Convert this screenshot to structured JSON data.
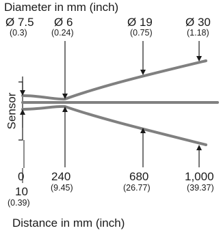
{
  "diagram": {
    "title": "Diameter in mm (inch)",
    "axis_label": "Distance in mm (inch)",
    "sensor_label": "Sensor",
    "beam_color": "#808080",
    "diameters": [
      {
        "mm": "Ø 7.5",
        "inch": "(0.3)"
      },
      {
        "mm": "Ø 6",
        "inch": "(0.24)"
      },
      {
        "mm": "Ø 19",
        "inch": "(0.75)"
      },
      {
        "mm": "Ø 30",
        "inch": "(1.18)"
      }
    ],
    "distances": [
      {
        "mm": "0",
        "inch": ""
      },
      {
        "mm": "240",
        "inch": "(9.45)"
      },
      {
        "mm": "680",
        "inch": "(26.77)"
      },
      {
        "mm": "1,000",
        "inch": "(39.37)"
      }
    ],
    "offset": {
      "mm": "10",
      "inch": "(0.39)"
    }
  }
}
